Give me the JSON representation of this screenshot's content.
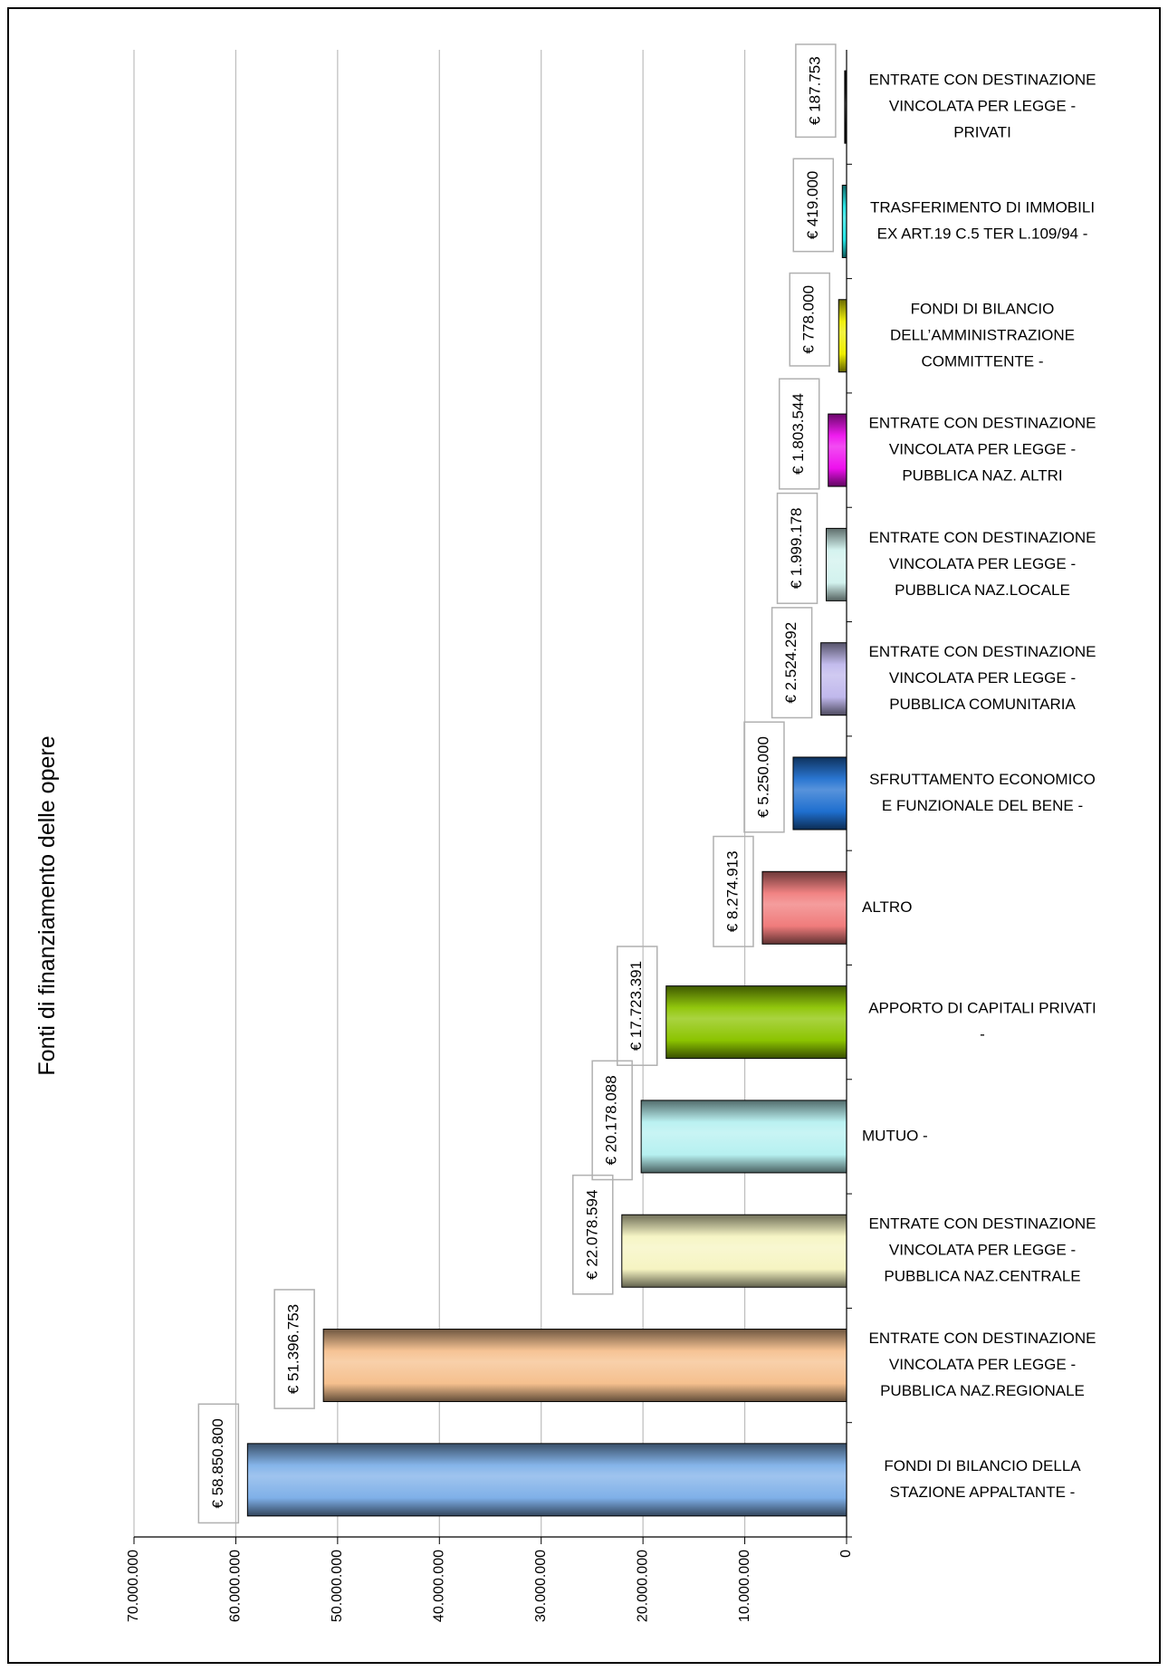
{
  "chart_data": {
    "type": "bar",
    "orientation": "horizontal, rotated 90° (page landscape)",
    "title": "Fonti di finanziamento delle opere",
    "xlim": [
      0,
      70000000
    ],
    "ticks": [
      "0",
      "10.000.000",
      "20.000.000",
      "30.000.000",
      "40.000.000",
      "50.000.000",
      "60.000.000",
      "70.000.000"
    ],
    "grid": true,
    "legend": "none",
    "bars": [
      {
        "label": [
          "FONDI DI BILANCIO DELLA",
          "STAZIONE APPALTANTE  -"
        ],
        "value": 58850800,
        "value_label": "€ 58.850.800",
        "color": "#7fb0e8"
      },
      {
        "label": [
          "ENTRATE CON DESTINAZIONE",
          "VINCOLATA PER LEGGE -",
          "PUBBLICA NAZ.REGIONALE"
        ],
        "value": 51396753,
        "value_label": "€ 51.396.753",
        "color": "#f5c08e"
      },
      {
        "label": [
          "ENTRATE CON DESTINAZIONE",
          "VINCOLATA PER LEGGE -",
          "PUBBLICA NAZ.CENTRALE"
        ],
        "value": 22078594,
        "value_label": "€ 22.078.594",
        "color": "#f6f4c2"
      },
      {
        "label": [
          "MUTUO  -"
        ],
        "value": 20178088,
        "value_label": "€ 20.178.088",
        "color": "#b6f0f0"
      },
      {
        "label": [
          "APPORTO DI CAPITALI PRIVATI",
          "-"
        ],
        "value": 17723391,
        "value_label": "€ 17.723.391",
        "color": "#8cc400"
      },
      {
        "label": [
          "ALTRO"
        ],
        "value": 8274913,
        "value_label": "€ 8.274.913",
        "color": "#f07c7c"
      },
      {
        "label": [
          "SFRUTTAMENTO ECONOMICO",
          "E FUNZIONALE DEL BENE  -"
        ],
        "value": 5250000,
        "value_label": "€ 5.250.000",
        "color": "#1f6fcf"
      },
      {
        "label": [
          "ENTRATE CON DESTINAZIONE",
          "VINCOLATA PER LEGGE -",
          "PUBBLICA  COMUNITARIA"
        ],
        "value": 2524292,
        "value_label": "€ 2.524.292",
        "color": "#c0b8ec"
      },
      {
        "label": [
          "ENTRATE CON DESTINAZIONE",
          "VINCOLATA PER LEGGE -",
          "PUBBLICA NAZ.LOCALE"
        ],
        "value": 1999178,
        "value_label": "€ 1.999.178",
        "color": "#d2f2ee"
      },
      {
        "label": [
          "ENTRATE CON DESTINAZIONE",
          "VINCOLATA PER LEGGE -",
          "PUBBLICA NAZ. ALTRI"
        ],
        "value": 1803544,
        "value_label": "€ 1.803.544",
        "color": "#ee10ee"
      },
      {
        "label": [
          "FONDI DI BILANCIO",
          "DELL’AMMINISTRAZIONE",
          "COMMITTENTE  -"
        ],
        "value": 778000,
        "value_label": "€ 778.000",
        "color": "#eeee00"
      },
      {
        "label": [
          "TRASFERIMENTO DI IMMOBILI",
          "EX ART.19 C.5 TER L.109/94  -"
        ],
        "value": 419000,
        "value_label": "€ 419.000",
        "color": "#22e6e6"
      },
      {
        "label": [
          "ENTRATE CON DESTINAZIONE",
          "VINCOLATA PER LEGGE -",
          "PRIVATI"
        ],
        "value": 187753,
        "value_label": "€ 187.753",
        "color": "#111111"
      }
    ]
  }
}
